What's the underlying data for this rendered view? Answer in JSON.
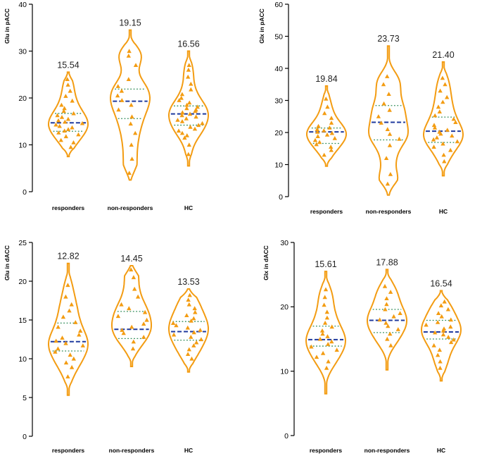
{
  "colors": {
    "violin": "#F39C12",
    "point": "#F39C12",
    "median": "#1F3A9E",
    "quartile": "#2E8B57",
    "axis": "#000000"
  },
  "chart_data": [
    {
      "type": "violin",
      "ylabel": "Glu in pACC",
      "ylim": [
        0,
        40
      ],
      "yticks": [
        0,
        10,
        20,
        30,
        40
      ],
      "categories": [
        "responders",
        "non-responders",
        "HC"
      ],
      "means": [
        "15.54",
        "19.15",
        "16.56"
      ],
      "median": [
        14.7,
        19.3,
        16.6
      ],
      "q1": [
        12.9,
        15.6,
        14.2
      ],
      "q3": [
        16.7,
        21.9,
        18.3
      ],
      "range": [
        [
          7.5,
          25.5
        ],
        [
          2.5,
          34.5
        ],
        [
          5.5,
          30.0
        ]
      ],
      "points": [
        [
          9.5,
          10.5,
          11.0,
          11.8,
          12.2,
          12.6,
          13.0,
          13.3,
          13.7,
          14.0,
          14.3,
          14.6,
          14.9,
          15.2,
          15.5,
          15.9,
          16.3,
          16.7,
          17.2,
          17.8,
          18.5,
          19.4,
          20.4,
          21.5,
          22.8,
          24.0
        ],
        [
          4.0,
          7.0,
          10.0,
          12.5,
          14.5,
          16.0,
          17.5,
          18.5,
          19.5,
          20.5,
          21.5,
          22.5,
          24.0,
          27.0,
          29.0,
          30.0
        ],
        [
          8.0,
          10.0,
          11.5,
          12.0,
          12.5,
          13.0,
          13.4,
          13.8,
          14.2,
          14.6,
          15.0,
          15.3,
          15.6,
          16.0,
          16.3,
          16.6,
          16.9,
          17.2,
          17.5,
          17.8,
          18.1,
          18.5,
          19.0,
          19.5,
          20.0,
          20.8,
          21.8,
          23.0,
          24.5,
          26.0,
          27.0
        ]
      ]
    },
    {
      "type": "violin",
      "ylabel": "Glx in pACC",
      "ylim": [
        0,
        60
      ],
      "yticks": [
        0,
        10,
        20,
        30,
        40,
        50,
        60
      ],
      "categories": [
        "responders",
        "non-responders",
        "HC"
      ],
      "means": [
        "19.84",
        "23.73",
        "21.40"
      ],
      "median": [
        20.2,
        23.2,
        20.4
      ],
      "q1": [
        16.6,
        17.7,
        16.9
      ],
      "q3": [
        21.4,
        28.4,
        24.8
      ],
      "range": [
        [
          9.5,
          34.5
        ],
        [
          0.5,
          47.0
        ],
        [
          6.5,
          42.0
        ]
      ],
      "points": [
        [
          13.0,
          14.5,
          15.5,
          16.3,
          17.0,
          17.6,
          18.2,
          18.8,
          19.3,
          19.8,
          20.2,
          20.6,
          21.0,
          21.5,
          22.0,
          23.0,
          24.5,
          26.0,
          28.0,
          30.5
        ],
        [
          4.0,
          7.0,
          12.0,
          16.0,
          18.0,
          19.5,
          21.0,
          23.0,
          25.0,
          27.0,
          29.0,
          32.0,
          35.0,
          37.5
        ],
        [
          11.0,
          13.0,
          14.5,
          15.5,
          16.5,
          17.2,
          17.8,
          18.4,
          19.0,
          19.6,
          20.2,
          20.8,
          21.5,
          22.3,
          23.2,
          24.2,
          25.3,
          26.5,
          28.0,
          29.5,
          31.0,
          33.0,
          35.0,
          37.0
        ]
      ]
    },
    {
      "type": "violin",
      "ylabel": "Glu in dACC",
      "ylim": [
        0,
        25
      ],
      "yticks": [
        0,
        5,
        10,
        15,
        20,
        25
      ],
      "categories": [
        "responders",
        "non-responders",
        "HC"
      ],
      "means": [
        "12.82",
        "14.45",
        "13.53"
      ],
      "median": [
        12.2,
        13.8,
        13.5
      ],
      "q1": [
        11.0,
        12.6,
        12.4
      ],
      "q3": [
        14.6,
        16.1,
        14.8
      ],
      "range": [
        [
          5.3,
          22.3
        ],
        [
          9.0,
          22.0
        ],
        [
          8.3,
          19.0
        ]
      ],
      "points": [
        [
          7.7,
          8.9,
          9.5,
          10.0,
          10.5,
          10.9,
          11.3,
          11.7,
          12.0,
          12.3,
          12.7,
          13.1,
          13.6,
          14.1,
          14.7,
          15.4,
          16.2,
          17.0,
          18.0,
          19.5
        ],
        [
          11.3,
          12.2,
          12.8,
          13.3,
          13.7,
          14.1,
          14.5,
          15.0,
          15.5,
          16.0,
          16.5,
          17.0,
          18.0,
          19.0,
          20.5,
          21.5
        ],
        [
          10.0,
          10.6,
          11.2,
          11.7,
          12.1,
          12.5,
          12.8,
          13.1,
          13.4,
          13.7,
          14.0,
          14.3,
          14.6,
          14.9,
          15.2,
          15.6,
          16.0,
          16.5,
          17.0,
          17.6,
          18.2
        ]
      ]
    },
    {
      "type": "violin",
      "ylabel": "Glx in dACC",
      "ylim": [
        0,
        30
      ],
      "yticks": [
        0,
        10,
        20,
        30
      ],
      "categories": [
        "responders",
        "non-responders",
        "HC"
      ],
      "means": [
        "15.61",
        "17.88",
        "16.54"
      ],
      "median": [
        14.9,
        17.9,
        16.1
      ],
      "q1": [
        13.9,
        16.0,
        15.0
      ],
      "q3": [
        17.0,
        19.6,
        17.9
      ],
      "range": [
        [
          6.5,
          25.5
        ],
        [
          10.2,
          25.8
        ],
        [
          8.5,
          22.5
        ]
      ],
      "points": [
        [
          10.5,
          11.5,
          12.2,
          12.8,
          13.3,
          13.8,
          14.2,
          14.6,
          15.0,
          15.4,
          15.8,
          16.3,
          16.9,
          17.5,
          18.3,
          19.2,
          20.3,
          21.5,
          22.7
        ],
        [
          14.0,
          15.0,
          15.8,
          16.5,
          17.0,
          17.5,
          18.0,
          18.5,
          19.0,
          19.6,
          20.4,
          21.3,
          22.3,
          23.2
        ],
        [
          10.5,
          11.5,
          12.5,
          13.3,
          14.0,
          14.5,
          14.9,
          15.3,
          15.7,
          16.0,
          16.3,
          16.6,
          16.9,
          17.2,
          17.6,
          18.0,
          18.5,
          19.0,
          19.6,
          20.2,
          20.8
        ]
      ]
    }
  ]
}
